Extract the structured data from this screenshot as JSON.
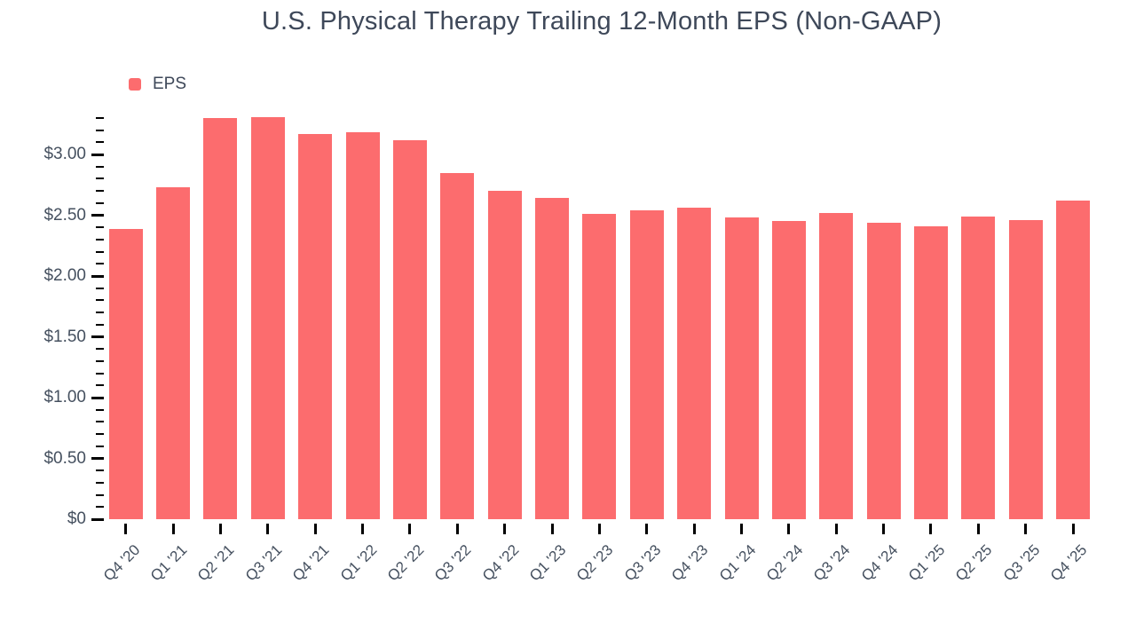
{
  "chart_data": {
    "type": "bar",
    "title": "U.S. Physical Therapy Trailing 12-Month EPS (Non-GAAP)",
    "xlabel": "",
    "ylabel": "",
    "legend_position": "top-left",
    "grid": "off",
    "categories": [
      "Q4 '20",
      "Q1 '21",
      "Q2 '21",
      "Q3 '21",
      "Q4 '21",
      "Q1 '22",
      "Q2 '22",
      "Q3 '22",
      "Q4 '22",
      "Q1 '23",
      "Q2 '23",
      "Q3 '23",
      "Q4 '23",
      "Q1 '24",
      "Q2 '24",
      "Q3 '24",
      "Q4 '24",
      "Q1 '25",
      "Q2 '25",
      "Q3 '25",
      "Q4 '25"
    ],
    "series": [
      {
        "name": "EPS",
        "values": [
          2.39,
          2.73,
          3.3,
          3.31,
          3.17,
          3.18,
          3.12,
          2.85,
          2.7,
          2.64,
          2.51,
          2.54,
          2.56,
          2.48,
          2.45,
          2.52,
          2.44,
          2.41,
          2.49,
          2.46,
          2.62
        ]
      }
    ],
    "ylim": [
      0,
      3.4
    ],
    "y_tick_values": [
      0,
      0.5,
      1.0,
      1.5,
      2.0,
      2.5,
      3.0
    ],
    "y_tick_labels": [
      "$0",
      "$0.50",
      "$1.00",
      "$1.50",
      "$2.00",
      "$2.50",
      "$3.00"
    ],
    "y_minor_tick_step": 0.1,
    "y_minor_tick_max": 3.3,
    "colors": {
      "bar": "#FC6C6E",
      "title_text": "#3E4859",
      "axis_text": "#45505F",
      "tick": "#000000",
      "background": "#FFFFFF"
    }
  }
}
